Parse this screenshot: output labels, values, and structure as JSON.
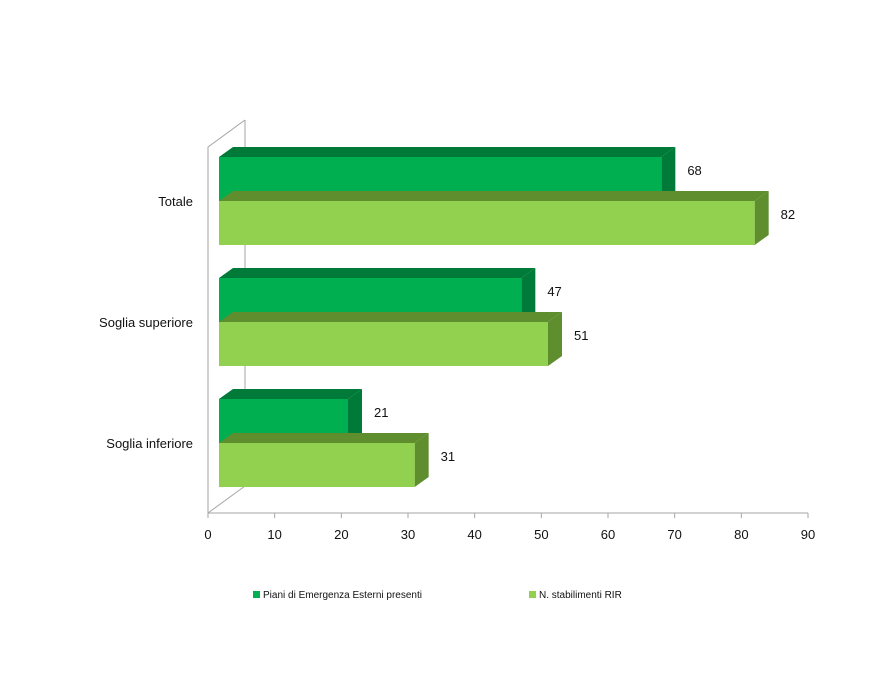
{
  "chart_data": {
    "type": "bar",
    "orientation": "horizontal",
    "style": "3d",
    "categories": [
      "Totale",
      "Soglia superiore",
      "Soglia inferiore"
    ],
    "series": [
      {
        "name": "Piani di Emergenza Esterni presenti",
        "values": [
          68,
          47,
          21
        ],
        "color": "#00b050",
        "shade": "#007a38"
      },
      {
        "name": "N. stabilimenti RIR",
        "values": [
          82,
          51,
          31
        ],
        "color": "#92d050",
        "shade": "#5f8e2e"
      }
    ],
    "xlim": [
      0,
      90
    ],
    "xticks": [
      0,
      10,
      20,
      30,
      40,
      50,
      60,
      70,
      80,
      90
    ],
    "xticks_text": [
      "0",
      "10",
      "20",
      "30",
      "40",
      "50",
      "60",
      "70",
      "80",
      "90"
    ],
    "data_labels": [
      "68",
      "82",
      "47",
      "51",
      "21",
      "31"
    ],
    "legend_position": "bottom",
    "grid": false,
    "wall_color": "#a6a6a6"
  }
}
